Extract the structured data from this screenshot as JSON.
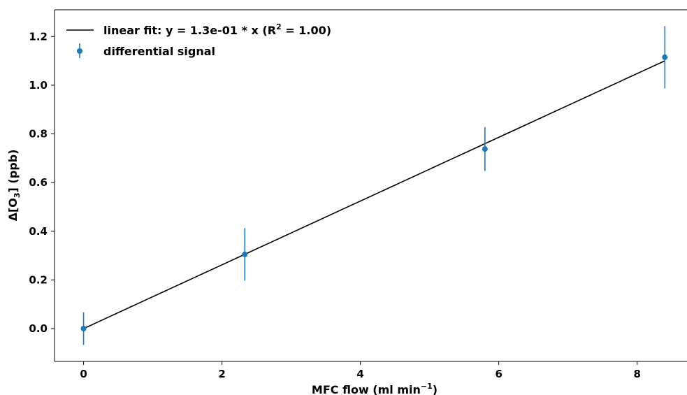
{
  "chart_data": {
    "type": "scatter",
    "xlabel": {
      "main": "MFC flow (ml min",
      "sup": "−1",
      "end": ")"
    },
    "ylabel": {
      "main": "Δ[O",
      "sub": "3",
      "end": "] (ppb)"
    },
    "xlim": [
      -0.42,
      8.72
    ],
    "ylim": [
      -0.135,
      1.31
    ],
    "xticks": [
      0,
      2,
      4,
      6,
      8
    ],
    "xtick_labels": [
      "0",
      "2",
      "4",
      "6",
      "8"
    ],
    "yticks": [
      0.0,
      0.2,
      0.4,
      0.6,
      0.8,
      1.0,
      1.2
    ],
    "ytick_labels": [
      "0.0",
      "0.2",
      "0.4",
      "0.6",
      "0.8",
      "1.0",
      "1.2"
    ],
    "grid": false,
    "legend_position": "top-left",
    "series": [
      {
        "name": "differential signal",
        "kind": "errorbar",
        "color": "#1f77b4",
        "x": [
          0.0,
          2.33,
          5.8,
          8.4
        ],
        "y": [
          0.0,
          0.305,
          0.738,
          1.115
        ],
        "yerr": [
          0.067,
          0.108,
          0.09,
          0.128
        ]
      },
      {
        "name": "linear fit",
        "kind": "line",
        "color": "#000000",
        "slope": 0.131,
        "x_range": [
          0.0,
          8.4
        ]
      }
    ],
    "legend": {
      "fit_label": {
        "main": "linear fit: y = 1.3e-01 * x (R",
        "sup": "2",
        "end": " = 1.00)"
      },
      "points_label": "differential signal"
    }
  }
}
